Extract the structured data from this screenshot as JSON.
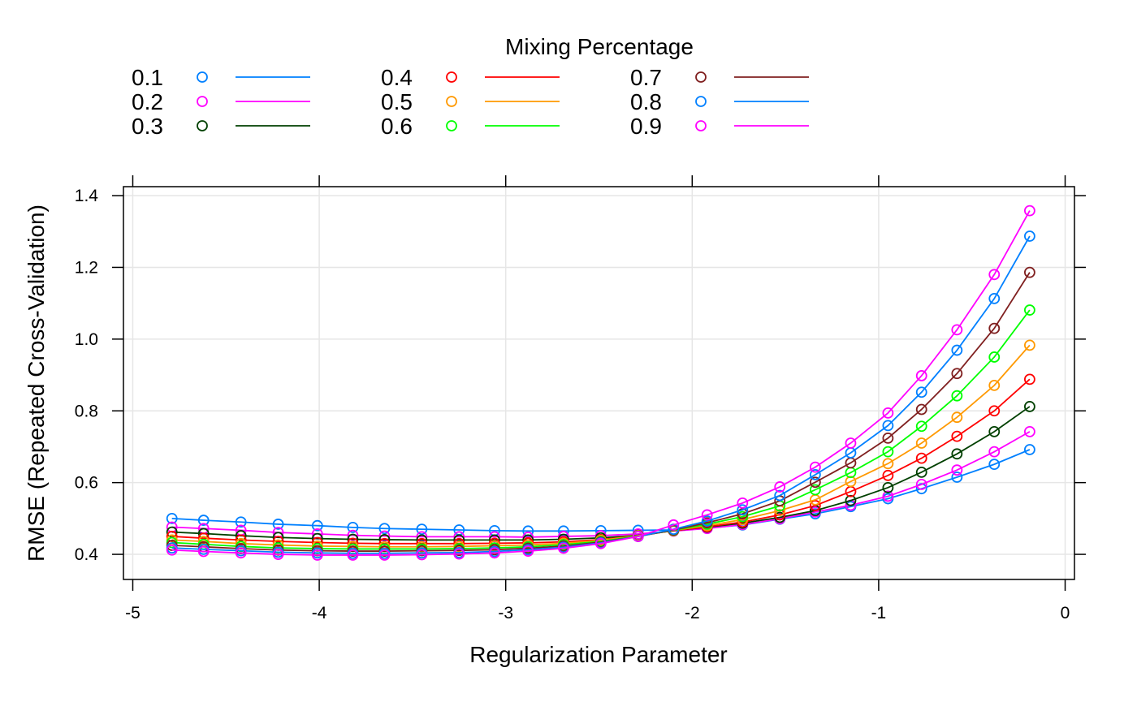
{
  "chart_data": {
    "type": "line",
    "legend": {
      "title": "Mixing Percentage",
      "placement": "top",
      "columns": 3
    },
    "xlabel": "Regularization Parameter",
    "ylabel": "RMSE (Repeated Cross-Validation)",
    "xlim": [
      -5.05,
      0.05
    ],
    "ylim": [
      0.33,
      1.425
    ],
    "xticks": [
      -5,
      -4,
      -3,
      -2,
      -1,
      0
    ],
    "xtick_labels": [
      "-5",
      "-4",
      "-3",
      "-2",
      "-1",
      "0"
    ],
    "yticks": [
      0.4,
      0.6,
      0.8,
      1.0,
      1.2,
      1.4
    ],
    "ytick_labels": [
      "0.4",
      "0.6",
      "0.8",
      "1.0",
      "1.2",
      "1.4"
    ],
    "grid": true,
    "x": [
      -4.79,
      -4.62,
      -4.42,
      -4.22,
      -4.01,
      -3.82,
      -3.65,
      -3.45,
      -3.25,
      -3.06,
      -2.88,
      -2.69,
      -2.49,
      -2.29,
      -2.1,
      -1.92,
      -1.73,
      -1.53,
      -1.34,
      -1.15,
      -0.95,
      -0.77,
      -0.58,
      -0.38,
      -0.19
    ],
    "series": [
      {
        "name": "0.1",
        "color": "#0080ff",
        "values": [
          0.5,
          0.495,
          0.49,
          0.484,
          0.48,
          0.475,
          0.472,
          0.47,
          0.468,
          0.466,
          0.465,
          0.465,
          0.466,
          0.467,
          0.468,
          0.473,
          0.482,
          0.498,
          0.513,
          0.533,
          0.555,
          0.583,
          0.615,
          0.651,
          0.692
        ]
      },
      {
        "name": "0.2",
        "color": "#ff00ff",
        "values": [
          0.476,
          0.472,
          0.467,
          0.461,
          0.457,
          0.453,
          0.451,
          0.449,
          0.449,
          0.449,
          0.448,
          0.45,
          0.452,
          0.457,
          0.465,
          0.472,
          0.483,
          0.499,
          0.518,
          0.537,
          0.562,
          0.595,
          0.635,
          0.686,
          0.742
        ]
      },
      {
        "name": "0.3",
        "color": "#004000",
        "values": [
          0.462,
          0.458,
          0.452,
          0.447,
          0.444,
          0.442,
          0.441,
          0.44,
          0.44,
          0.44,
          0.44,
          0.442,
          0.446,
          0.453,
          0.466,
          0.476,
          0.487,
          0.503,
          0.522,
          0.55,
          0.586,
          0.629,
          0.68,
          0.742,
          0.812
        ]
      },
      {
        "name": "0.4",
        "color": "#ff0000",
        "values": [
          0.45,
          0.445,
          0.44,
          0.436,
          0.433,
          0.431,
          0.43,
          0.43,
          0.43,
          0.431,
          0.432,
          0.435,
          0.441,
          0.452,
          0.466,
          0.477,
          0.49,
          0.51,
          0.536,
          0.575,
          0.62,
          0.668,
          0.729,
          0.8,
          0.888
        ]
      },
      {
        "name": "0.5",
        "color": "#ff9900",
        "values": [
          0.44,
          0.436,
          0.43,
          0.426,
          0.423,
          0.422,
          0.421,
          0.421,
          0.422,
          0.424,
          0.426,
          0.431,
          0.439,
          0.452,
          0.467,
          0.48,
          0.497,
          0.522,
          0.552,
          0.603,
          0.653,
          0.71,
          0.782,
          0.871,
          0.983
        ]
      },
      {
        "name": "0.6",
        "color": "#00ff00",
        "values": [
          0.433,
          0.428,
          0.422,
          0.418,
          0.416,
          0.415,
          0.415,
          0.415,
          0.416,
          0.418,
          0.421,
          0.427,
          0.436,
          0.451,
          0.467,
          0.484,
          0.505,
          0.535,
          0.58,
          0.628,
          0.686,
          0.757,
          0.842,
          0.95,
          1.081
        ]
      },
      {
        "name": "0.7",
        "color": "#802020",
        "values": [
          0.425,
          0.421,
          0.416,
          0.412,
          0.41,
          0.409,
          0.409,
          0.41,
          0.411,
          0.413,
          0.417,
          0.423,
          0.434,
          0.45,
          0.468,
          0.488,
          0.513,
          0.549,
          0.601,
          0.655,
          0.724,
          0.804,
          0.904,
          1.03,
          1.186
        ]
      },
      {
        "name": "0.8",
        "color": "#0080ff",
        "values": [
          0.418,
          0.414,
          0.41,
          0.406,
          0.404,
          0.403,
          0.403,
          0.404,
          0.405,
          0.408,
          0.413,
          0.42,
          0.432,
          0.45,
          0.47,
          0.493,
          0.524,
          0.564,
          0.622,
          0.683,
          0.759,
          0.852,
          0.969,
          1.113,
          1.287
        ]
      },
      {
        "name": "0.9",
        "color": "#ff00ff",
        "values": [
          0.412,
          0.408,
          0.404,
          0.4,
          0.398,
          0.398,
          0.398,
          0.399,
          0.401,
          0.404,
          0.409,
          0.417,
          0.43,
          0.45,
          0.482,
          0.51,
          0.543,
          0.588,
          0.643,
          0.71,
          0.794,
          0.898,
          1.026,
          1.18,
          1.358
        ]
      }
    ]
  }
}
